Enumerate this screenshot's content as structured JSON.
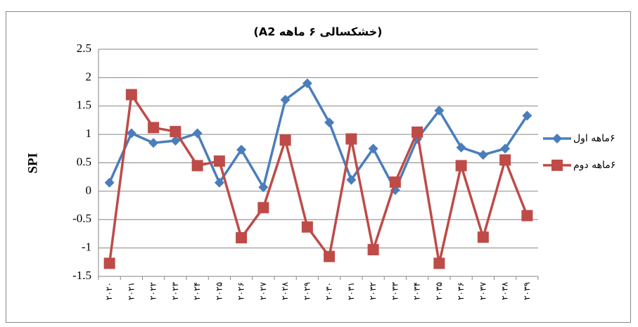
{
  "chart_data": {
    "type": "line",
    "title": "(خشکسالی ۶ ماهه A2)",
    "y_label": "SPI",
    "categories": [
      "۲۰۲۰",
      "۲۰۲۱",
      "۲۰۲۲",
      "۲۰۲۳",
      "۲۰۲۴",
      "۲۰۲۵",
      "۲۰۲۶",
      "۲۰۲۷",
      "۲۰۲۸",
      "۲۰۲۹",
      "۲۰۳۰",
      "۲۰۳۱",
      "۲۰۳۲",
      "۲۰۳۳",
      "۲۰۳۴",
      "۲۰۳۵",
      "۲۰۳۶",
      "۲۰۳۷",
      "۲۰۳۸",
      "۲۰۳۹"
    ],
    "series": [
      {
        "name": "۶ماهه اول",
        "color": "#4a7ebb",
        "marker": "diamond",
        "values": [
          0.15,
          1.02,
          0.85,
          0.89,
          1.02,
          0.15,
          0.73,
          0.07,
          1.61,
          1.9,
          1.21,
          0.2,
          0.75,
          0.02,
          0.92,
          1.42,
          0.77,
          0.64,
          0.75,
          1.33
        ]
      },
      {
        "name": "۶ماهه دوم",
        "color": "#be4b48",
        "marker": "square",
        "values": [
          -1.27,
          1.7,
          1.12,
          1.05,
          0.45,
          0.53,
          -0.82,
          -0.29,
          0.9,
          -0.63,
          -1.15,
          0.92,
          -1.03,
          0.16,
          1.04,
          -1.27,
          0.45,
          -0.81,
          0.55,
          -0.43
        ]
      }
    ],
    "ylim": [
      -1.5,
      2.5
    ],
    "yticks": [
      -1.5,
      -1,
      -0.5,
      0,
      0.5,
      1,
      1.5,
      2,
      2.5
    ],
    "grid": true,
    "legend": "right"
  }
}
